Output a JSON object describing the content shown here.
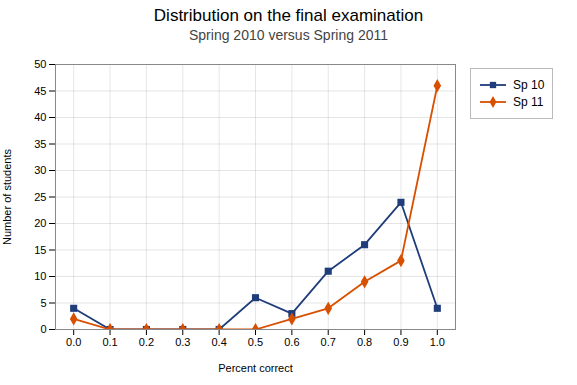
{
  "chart_data": {
    "type": "line",
    "title": "Distribution on the final examination",
    "subtitle": "Spring 2010 versus Spring 2011",
    "xlabel": "Percent correct",
    "ylabel": "Number of students",
    "x": [
      0.0,
      0.1,
      0.2,
      0.3,
      0.4,
      0.5,
      0.6,
      0.7,
      0.8,
      0.9,
      1.0
    ],
    "series": [
      {
        "name": "Sp 10",
        "color": "#1F3D7A",
        "marker": "square",
        "values": [
          4,
          0,
          0,
          0,
          0,
          6,
          3,
          11,
          16,
          24,
          4
        ]
      },
      {
        "name": "Sp 11",
        "color": "#D94F00",
        "marker": "diamond",
        "values": [
          2,
          0,
          0,
          0,
          0,
          0,
          2,
          4,
          9,
          13,
          46
        ]
      }
    ],
    "xlim": [
      -0.05,
      1.05
    ],
    "ylim": [
      0,
      50
    ],
    "xticks": [
      {
        "value": 0.0,
        "label": "0.0"
      },
      0.1,
      0.2,
      0.3,
      0.4,
      0.5,
      0.6,
      0.7,
      0.8,
      0.9,
      {
        "value": 1.0,
        "label": "1.0"
      }
    ],
    "yticks": [
      0,
      5,
      10,
      15,
      20,
      25,
      30,
      35,
      40,
      45,
      50
    ],
    "grid": true,
    "legend": "upper right"
  }
}
